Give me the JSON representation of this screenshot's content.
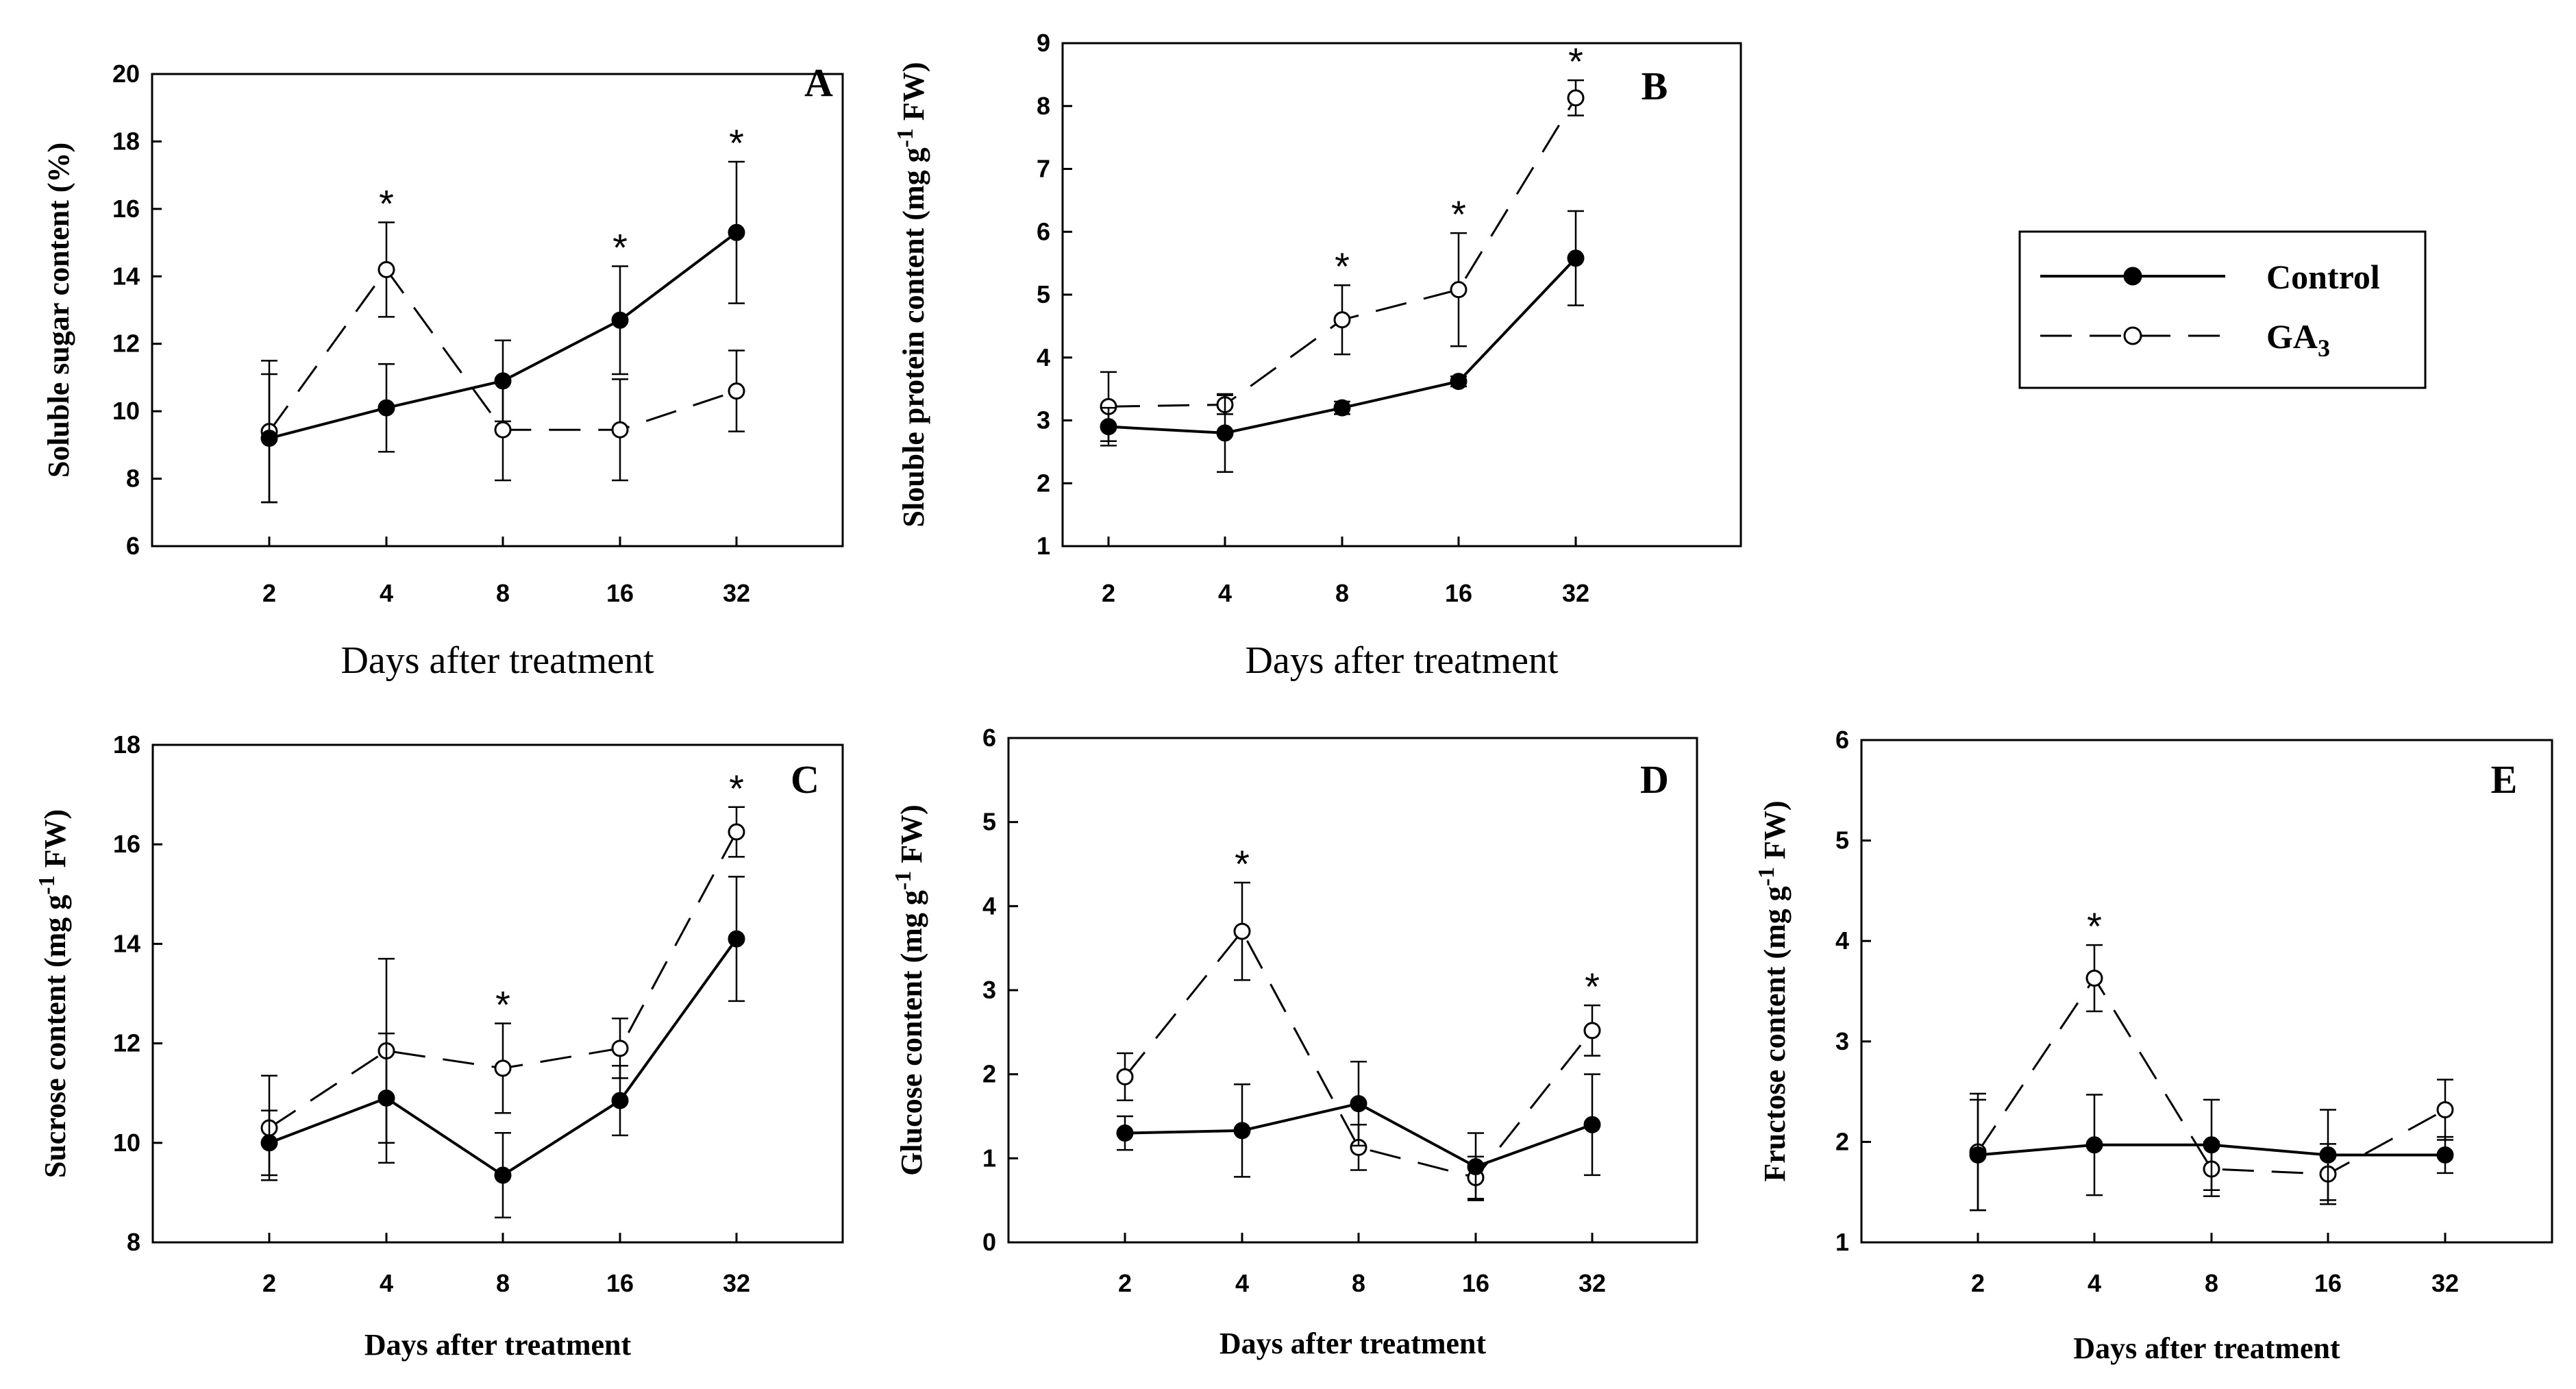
{
  "colors": {
    "line": "#000000",
    "open_fill": "#ffffff",
    "background": "#ffffff"
  },
  "legend": {
    "entries": [
      {
        "name": "Control",
        "marker": "filled-circle",
        "dash": "solid"
      },
      {
        "name": "GA3",
        "display": "GA",
        "subscript": "3",
        "marker": "open-circle",
        "dash": "dashed"
      }
    ]
  },
  "chart_data": [
    {
      "id": "A",
      "type": "line",
      "panel_label": "A",
      "categories": [
        "2",
        "4",
        "8",
        "16",
        "32"
      ],
      "ylabel": "Soluble sugar content (%)",
      "xlabel": "Days after treatment",
      "xlabel_style": "serif",
      "ylim": [
        6,
        20
      ],
      "yticks": [
        "6",
        "8",
        "10",
        "12",
        "14",
        "16",
        "18",
        "20"
      ],
      "series": [
        {
          "name": "Control",
          "values": [
            9.2,
            10.1,
            10.9,
            12.7,
            15.3
          ],
          "errors": [
            1.9,
            1.3,
            1.2,
            1.6,
            2.1
          ]
        },
        {
          "name": "GA3",
          "values": [
            9.4,
            14.2,
            9.45,
            9.45,
            10.6
          ],
          "errors": [
            2.1,
            1.4,
            1.5,
            1.5,
            1.2
          ]
        }
      ],
      "significant_at": [
        "4",
        "16",
        "32"
      ]
    },
    {
      "id": "B",
      "type": "line",
      "panel_label": "B",
      "categories": [
        "2",
        "4",
        "8",
        "16",
        "32"
      ],
      "ylabel": "Slouble protein content (mg g-1 FW)",
      "ylabel_parts": [
        "Slouble protein content (mg g",
        "-1",
        " FW)"
      ],
      "xlabel": "Days after treatment",
      "xlabel_style": "serif",
      "ylim": [
        1,
        9
      ],
      "yticks": [
        "1",
        "2",
        "3",
        "4",
        "5",
        "6",
        "7",
        "8",
        "9"
      ],
      "series": [
        {
          "name": "Control",
          "values": [
            2.9,
            2.8,
            3.2,
            3.62,
            5.58
          ],
          "errors": [
            0.3,
            0.62,
            0.1,
            0.08,
            0.75
          ]
        },
        {
          "name": "GA3",
          "values": [
            3.22,
            3.25,
            4.6,
            5.08,
            8.13
          ],
          "errors": [
            0.55,
            0.15,
            0.55,
            0.9,
            0.28
          ]
        }
      ],
      "significant_at": [
        "8",
        "16",
        "32"
      ]
    },
    {
      "id": "C",
      "type": "line",
      "panel_label": "C",
      "categories": [
        "2",
        "4",
        "8",
        "16",
        "32"
      ],
      "ylabel": "Sucrose content (mg g-1 FW)",
      "ylabel_parts": [
        "Sucrose content (mg g",
        "-1",
        " FW)"
      ],
      "xlabel": "Days after treatment",
      "xlabel_style": "bold",
      "ylim": [
        8,
        18
      ],
      "yticks": [
        "8",
        "10",
        "12",
        "14",
        "16",
        "18"
      ],
      "series": [
        {
          "name": "Control",
          "values": [
            10.0,
            10.9,
            9.35,
            10.85,
            14.1
          ],
          "errors": [
            0.65,
            1.3,
            0.85,
            0.7,
            1.25
          ]
        },
        {
          "name": "GA3",
          "values": [
            10.3,
            11.85,
            11.5,
            11.9,
            16.25
          ],
          "errors": [
            1.05,
            1.85,
            0.9,
            0.6,
            0.5
          ]
        }
      ],
      "significant_at": [
        "8",
        "32"
      ]
    },
    {
      "id": "D",
      "type": "line",
      "panel_label": "D",
      "categories": [
        "2",
        "4",
        "8",
        "16",
        "32"
      ],
      "ylabel": "Glucose content (mg g-1 FW)",
      "ylabel_parts": [
        "Glucose content (mg g",
        "-1",
        " FW)"
      ],
      "xlabel": "Days after treatment",
      "xlabel_style": "bold",
      "ylim": [
        0,
        6
      ],
      "yticks": [
        "0",
        "1",
        "2",
        "3",
        "4",
        "5",
        "6"
      ],
      "series": [
        {
          "name": "Control",
          "values": [
            1.3,
            1.33,
            1.65,
            0.9,
            1.4
          ],
          "errors": [
            0.2,
            0.55,
            0.5,
            0.4,
            0.6
          ]
        },
        {
          "name": "GA3",
          "values": [
            1.97,
            3.7,
            1.13,
            0.77,
            2.52
          ],
          "errors": [
            0.28,
            0.58,
            0.27,
            0.25,
            0.3
          ]
        }
      ],
      "significant_at": [
        "4",
        "32"
      ]
    },
    {
      "id": "E",
      "type": "line",
      "panel_label": "E",
      "categories": [
        "2",
        "4",
        "8",
        "16",
        "32"
      ],
      "ylabel": "Fructose content (mg g-1 FW)",
      "ylabel_parts": [
        "Fructose content (mg g",
        "-1",
        " FW)"
      ],
      "xlabel": "Days after treatment",
      "xlabel_style": "bold",
      "ylim": [
        1,
        6
      ],
      "yticks": [
        "1",
        "2",
        "3",
        "4",
        "5",
        "6"
      ],
      "series": [
        {
          "name": "Control",
          "values": [
            1.87,
            1.97,
            1.97,
            1.87,
            1.87
          ],
          "errors": [
            0.55,
            0.5,
            0.45,
            0.45,
            0.18
          ]
        },
        {
          "name": "GA3",
          "values": [
            1.9,
            3.63,
            1.73,
            1.68,
            2.32
          ],
          "errors": [
            0.58,
            0.33,
            0.27,
            0.3,
            0.3
          ]
        }
      ],
      "significant_at": [
        "4"
      ]
    }
  ]
}
